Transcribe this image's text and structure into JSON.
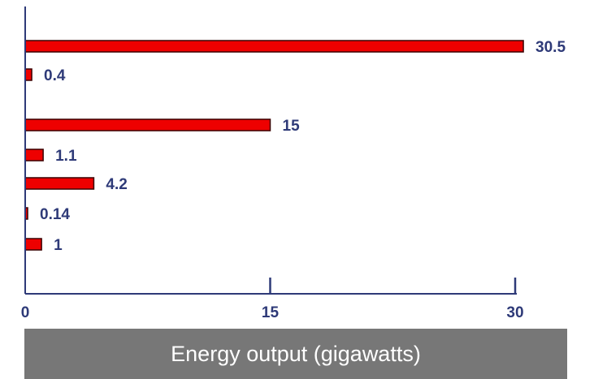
{
  "chart_data": {
    "type": "bar",
    "orientation": "horizontal",
    "values": [
      30.5,
      0.4,
      15,
      1.1,
      4.2,
      0.14,
      1
    ],
    "value_labels": [
      "30.5",
      "0.4",
      "15",
      "1.1",
      "4.2",
      "0.14",
      "1"
    ],
    "xlabel": "Energy output (gigawatts)",
    "xlim": [
      0,
      30
    ],
    "xticks": [
      0,
      15,
      30
    ],
    "xtick_labels": [
      "0",
      "15",
      "30"
    ],
    "grid": false,
    "bar_color": "#ee0000",
    "bar_edge_color": "#3a0000",
    "label_color": "#2e3a78",
    "axis_color": "#2e3a78"
  }
}
